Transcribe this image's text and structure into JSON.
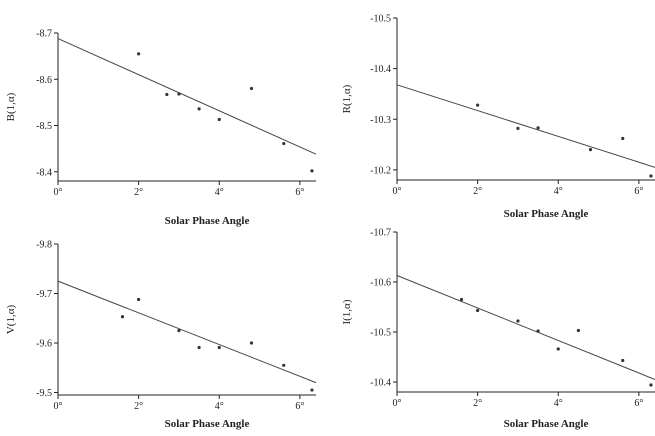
{
  "chart_data": [
    {
      "type": "scatter",
      "xlabel": "Solar Phase Angle",
      "ylabel": "B(1,α)",
      "xlim": [
        0,
        6.4
      ],
      "ylim": [
        -8.7,
        -8.38
      ],
      "y_reversed": true,
      "x_ticks": [
        0,
        2,
        4,
        6
      ],
      "x_tick_labels": [
        "0°",
        "2°",
        "4°",
        "6°"
      ],
      "y_ticks": [
        -8.7,
        -8.6,
        -8.5,
        -8.4
      ],
      "y_tick_labels": [
        "-8.7",
        "-8.6",
        "-8.5",
        "-8.4"
      ],
      "points": {
        "x": [
          2.0,
          2.7,
          3.0,
          3.5,
          4.0,
          4.8,
          5.6,
          6.3
        ],
        "y": [
          -8.655,
          -8.567,
          -8.568,
          -8.536,
          -8.513,
          -8.58,
          -8.461,
          -8.402
        ]
      },
      "fit_line": {
        "x": [
          0,
          6.4
        ],
        "y": [
          -8.688,
          -8.438
        ]
      },
      "grid": false
    },
    {
      "type": "scatter",
      "xlabel": "Solar Phase Angle",
      "ylabel": "R(1,α)",
      "xlim": [
        0,
        6.4
      ],
      "ylim": [
        -10.5,
        -10.18
      ],
      "y_reversed": true,
      "x_ticks": [
        0,
        2,
        4,
        6
      ],
      "x_tick_labels": [
        "0°",
        "2°",
        "4°",
        "6°"
      ],
      "y_ticks": [
        -10.5,
        -10.4,
        -10.3,
        -10.2
      ],
      "y_tick_labels": [
        "-10.5",
        "-10.4",
        "-10.3",
        "-10.2"
      ],
      "points": {
        "x": [
          2.0,
          3.0,
          3.5,
          4.8,
          5.6,
          6.3
        ],
        "y": [
          -10.328,
          -10.282,
          -10.283,
          -10.24,
          -10.262,
          -10.188
        ]
      },
      "fit_line": {
        "x": [
          0,
          6.4
        ],
        "y": [
          -10.368,
          -10.205
        ]
      },
      "grid": false
    },
    {
      "type": "scatter",
      "xlabel": "Solar Phase Angle",
      "ylabel": "V(1,α)",
      "xlim": [
        0,
        6.4
      ],
      "ylim": [
        -9.8,
        -9.495
      ],
      "y_reversed": true,
      "x_ticks": [
        0,
        2,
        4,
        6
      ],
      "x_tick_labels": [
        "0°",
        "2°",
        "4°",
        "6°"
      ],
      "y_ticks": [
        -9.8,
        -9.7,
        -9.6,
        -9.5
      ],
      "y_tick_labels": [
        "-9.8",
        "-9.7",
        "-9.6",
        "-9.5"
      ],
      "points": {
        "x": [
          1.6,
          2.0,
          3.0,
          3.5,
          4.0,
          4.8,
          5.6,
          6.3
        ],
        "y": [
          -9.653,
          -9.688,
          -9.625,
          -9.591,
          -9.591,
          -9.6,
          -9.555,
          -9.505
        ]
      },
      "fit_line": {
        "x": [
          0,
          6.4
        ],
        "y": [
          -9.725,
          -9.52
        ]
      },
      "grid": false
    },
    {
      "type": "scatter",
      "xlabel": "Solar Phase Angle",
      "ylabel": "I(1,α)",
      "xlim": [
        0,
        6.4
      ],
      "ylim": [
        -10.7,
        -10.38
      ],
      "y_reversed": true,
      "x_ticks": [
        0,
        2,
        4,
        6
      ],
      "x_tick_labels": [
        "0°",
        "2°",
        "4°",
        "6°"
      ],
      "y_ticks": [
        -10.7,
        -10.6,
        -10.5,
        -10.4
      ],
      "y_tick_labels": [
        "-10.7",
        "-10.6",
        "-10.5",
        "-10.4"
      ],
      "points": {
        "x": [
          1.6,
          2.0,
          3.0,
          3.5,
          4.0,
          4.5,
          5.6,
          6.3
        ],
        "y": [
          -10.565,
          -10.543,
          -10.522,
          -10.502,
          -10.466,
          -10.503,
          -10.443,
          -10.394
        ]
      },
      "fit_line": {
        "x": [
          0,
          6.4
        ],
        "y": [
          -10.613,
          -10.405
        ]
      },
      "grid": false
    }
  ],
  "colors": {
    "axis": "#222222",
    "points": "#333333",
    "line": "#444444"
  }
}
